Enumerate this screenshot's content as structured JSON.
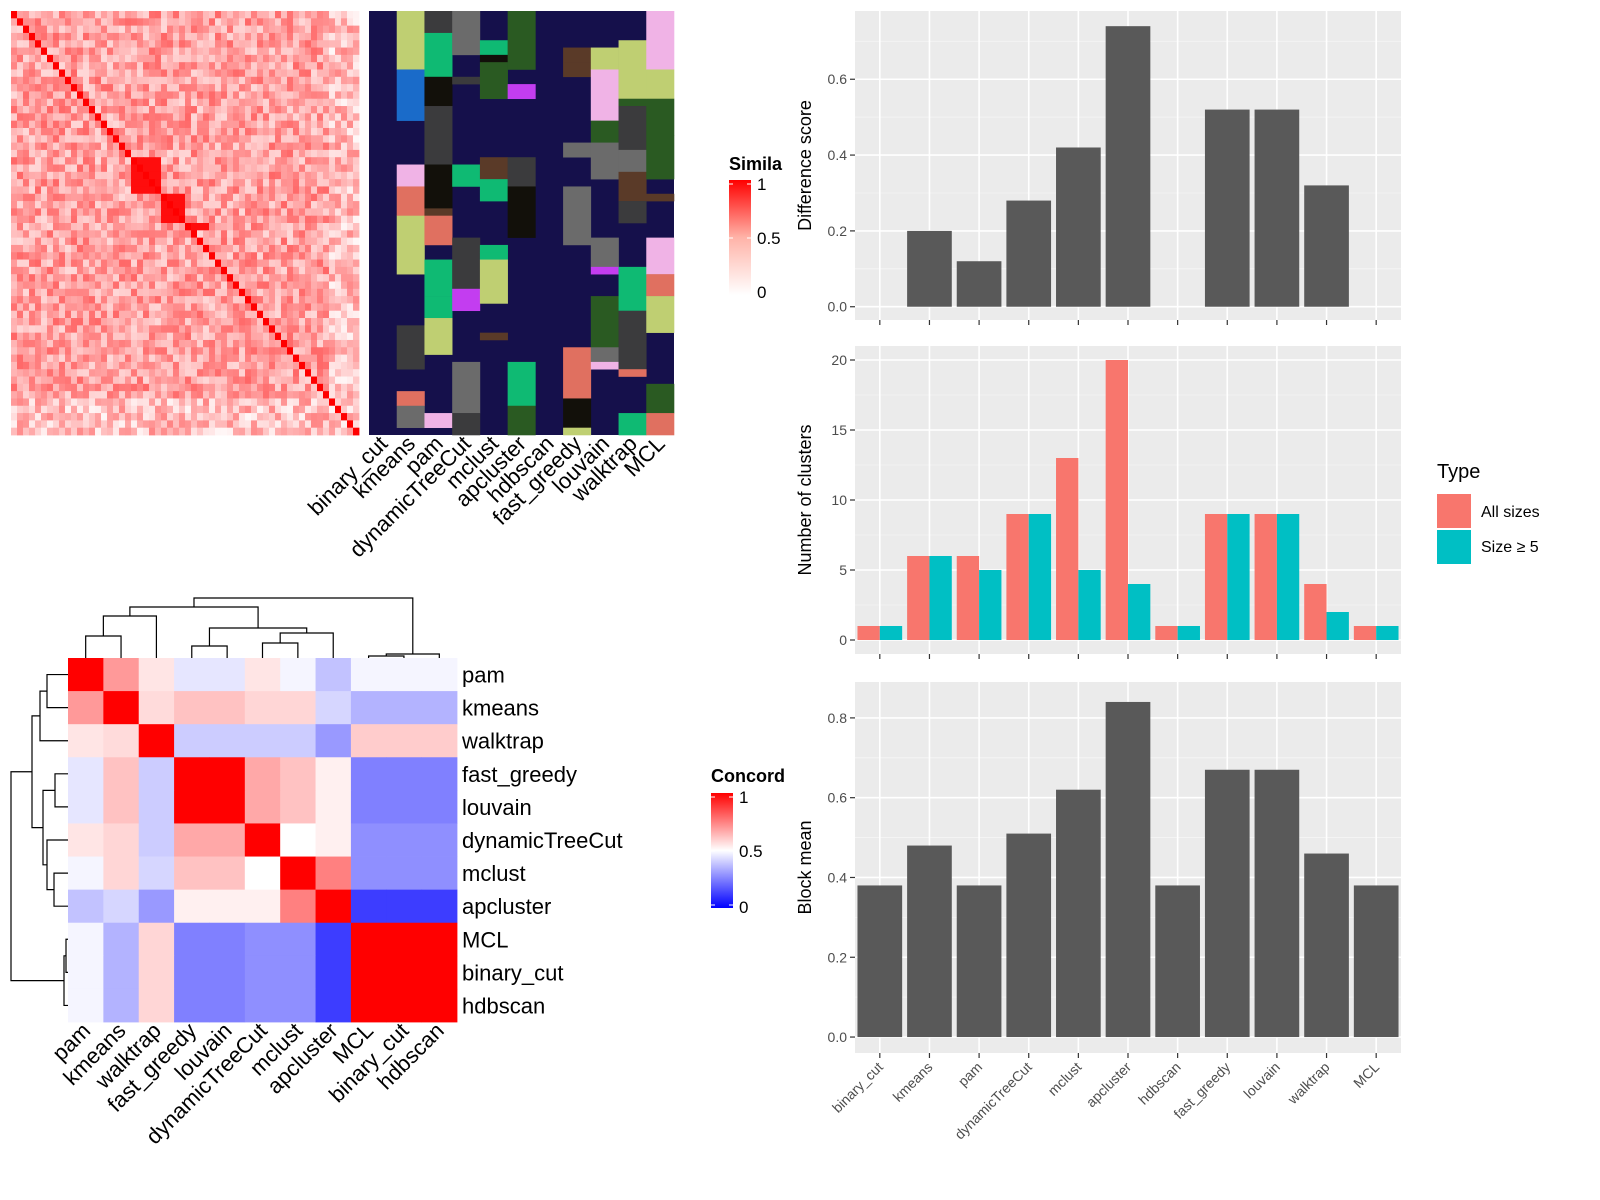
{
  "methods_bar_order": [
    "binary_cut",
    "kmeans",
    "pam",
    "dynamicTreeCut",
    "mclust",
    "apcluster",
    "hdbscan",
    "fast_greedy",
    "louvain",
    "walktrap",
    "MCL"
  ],
  "colors": {
    "bar_gray": "#595959",
    "panel_bg": "#ebebeb",
    "all_sizes": "#F8766D",
    "size_ge5": "#00BFC4",
    "hm_high": "#ff0000",
    "hm_mid": "#ffffff",
    "hm_low": "#0000ff",
    "cluster_bg": "#15104b"
  },
  "top_heatmap": {
    "legend_title": "Simila",
    "legend_ticks": [
      "1",
      "0.5",
      "0"
    ],
    "column_labels": [
      "binary_cut",
      "kmeans",
      "pam",
      "dynamicTreeCut",
      "mclust",
      "apcluster",
      "hdbscan",
      "fast_greedy",
      "louvain",
      "walktrap",
      "MCL"
    ]
  },
  "concordance_heatmap": {
    "legend_title": "Concord",
    "legend_ticks": [
      "1",
      "0.5",
      "0"
    ],
    "row_labels": [
      "pam",
      "kmeans",
      "walktrap",
      "fast_greedy",
      "louvain",
      "dynamicTreeCut",
      "mclust",
      "apcluster",
      "MCL",
      "binary_cut",
      "hdbscan"
    ],
    "col_labels": [
      "pam",
      "kmeans",
      "walktrap",
      "fast_greedy",
      "louvain",
      "dynamicTreeCut",
      "mclust",
      "apcluster",
      "MCL",
      "binary_cut",
      "hdbscan"
    ],
    "matrix": [
      [
        1.0,
        0.7,
        0.55,
        0.45,
        0.45,
        0.55,
        0.48,
        0.38,
        0.48,
        0.48,
        0.48
      ],
      [
        0.7,
        1.0,
        0.57,
        0.62,
        0.62,
        0.58,
        0.58,
        0.42,
        0.35,
        0.35,
        0.35
      ],
      [
        0.55,
        0.57,
        1.0,
        0.4,
        0.4,
        0.4,
        0.4,
        0.3,
        0.6,
        0.6,
        0.6
      ],
      [
        0.45,
        0.62,
        0.4,
        1.0,
        1.0,
        0.67,
        0.62,
        0.53,
        0.25,
        0.25,
        0.25
      ],
      [
        0.45,
        0.62,
        0.4,
        1.0,
        1.0,
        0.67,
        0.62,
        0.53,
        0.25,
        0.25,
        0.25
      ],
      [
        0.55,
        0.58,
        0.4,
        0.67,
        0.67,
        1.0,
        0.5,
        0.53,
        0.28,
        0.28,
        0.28
      ],
      [
        0.48,
        0.58,
        0.42,
        0.62,
        0.62,
        0.5,
        1.0,
        0.75,
        0.28,
        0.28,
        0.28
      ],
      [
        0.38,
        0.42,
        0.3,
        0.53,
        0.53,
        0.53,
        0.75,
        1.0,
        0.12,
        0.12,
        0.12
      ],
      [
        0.48,
        0.35,
        0.58,
        0.25,
        0.25,
        0.28,
        0.28,
        0.12,
        1.0,
        1.0,
        1.0
      ],
      [
        0.48,
        0.35,
        0.58,
        0.25,
        0.25,
        0.28,
        0.28,
        0.12,
        1.0,
        1.0,
        1.0
      ],
      [
        0.48,
        0.35,
        0.58,
        0.25,
        0.25,
        0.28,
        0.28,
        0.12,
        1.0,
        1.0,
        1.0
      ]
    ]
  },
  "chart_data": [
    {
      "type": "bar",
      "categories": [
        "binary_cut",
        "kmeans",
        "pam",
        "dynamicTreeCut",
        "mclust",
        "apcluster",
        "hdbscan",
        "fast_greedy",
        "louvain",
        "walktrap",
        "MCL"
      ],
      "values": [
        0,
        0.2,
        0.12,
        0.28,
        0.42,
        0.74,
        0,
        0.52,
        0.52,
        0.32,
        0
      ],
      "ylabel": "Difference score",
      "ylim": [
        -0.035,
        0.78
      ],
      "yticks": [
        0.0,
        0.2,
        0.4,
        0.6
      ],
      "ytick_labels": [
        "0.0",
        "0.2",
        "0.4",
        "0.6"
      ],
      "grid": true
    },
    {
      "type": "bar",
      "categories": [
        "binary_cut",
        "kmeans",
        "pam",
        "dynamicTreeCut",
        "mclust",
        "apcluster",
        "hdbscan",
        "fast_greedy",
        "louvain",
        "walktrap",
        "MCL"
      ],
      "series": [
        {
          "name": "All sizes",
          "values": [
            1,
            6,
            6,
            9,
            13,
            20,
            1,
            9,
            9,
            4,
            1
          ]
        },
        {
          "name": "Size ≥ 5",
          "values": [
            1,
            6,
            5,
            9,
            5,
            4,
            1,
            9,
            9,
            2,
            1
          ]
        }
      ],
      "ylabel": "Number of clusters",
      "ylim": [
        -1,
        21
      ],
      "yticks": [
        0,
        5,
        10,
        15,
        20
      ],
      "ytick_labels": [
        "0",
        "5",
        "10",
        "15",
        "20"
      ],
      "legend": {
        "title": "Type",
        "position": "right"
      },
      "grid": true
    },
    {
      "type": "bar",
      "categories": [
        "binary_cut",
        "kmeans",
        "pam",
        "dynamicTreeCut",
        "mclust",
        "apcluster",
        "hdbscan",
        "fast_greedy",
        "louvain",
        "walktrap",
        "MCL"
      ],
      "values": [
        0.38,
        0.48,
        0.38,
        0.51,
        0.62,
        0.84,
        0.38,
        0.67,
        0.67,
        0.46,
        0.38
      ],
      "ylabel": "Block mean",
      "ylim": [
        -0.04,
        0.89
      ],
      "yticks": [
        0.0,
        0.2,
        0.4,
        0.6,
        0.8
      ],
      "ytick_labels": [
        "0.0",
        "0.2",
        "0.4",
        "0.6",
        "0.8"
      ],
      "grid": true
    }
  ]
}
